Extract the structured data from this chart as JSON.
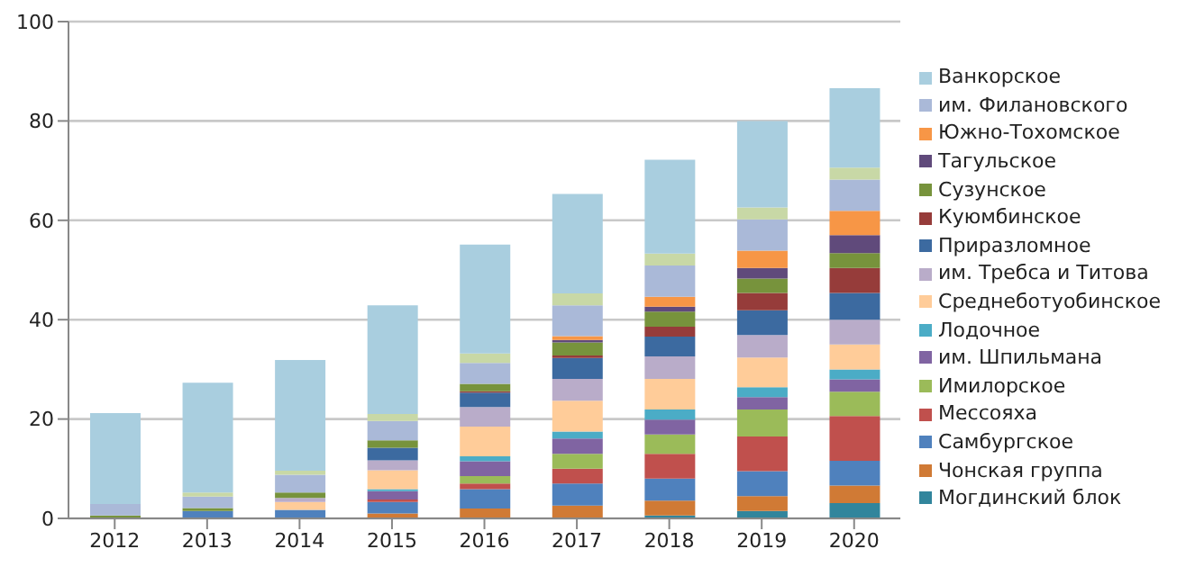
{
  "chart_data": {
    "type": "bar",
    "stacked": true,
    "categories": [
      "2012",
      "2013",
      "2014",
      "2015",
      "2016",
      "2017",
      "2018",
      "2019",
      "2020"
    ],
    "ylim": [
      0,
      100
    ],
    "yticks": [
      0,
      20,
      40,
      60,
      80,
      100
    ],
    "grid": "y",
    "legend": "right",
    "series": [
      {
        "name": "Могдинский блок",
        "color": "#31859c",
        "values": [
          0,
          0,
          0,
          0,
          0,
          0,
          0.6,
          1.5,
          3.1
        ]
      },
      {
        "name": "Чонская группа",
        "color": "#d07a35",
        "values": [
          0,
          0,
          0,
          1.0,
          2.0,
          2.6,
          3.0,
          3.0,
          3.5
        ]
      },
      {
        "name": "Самбургское",
        "color": "#4f81bd",
        "values": [
          0,
          1.5,
          1.7,
          2.3,
          3.9,
          4.4,
          4.4,
          5.0,
          5.0
        ]
      },
      {
        "name": "Мессояха",
        "color": "#c0504d",
        "values": [
          0,
          0,
          0,
          0.5,
          1.1,
          3.0,
          5.0,
          7.0,
          9.0
        ]
      },
      {
        "name": "Имилорское",
        "color": "#9bbb59",
        "values": [
          0,
          0,
          0,
          0,
          1.5,
          3.0,
          3.9,
          5.4,
          4.9
        ]
      },
      {
        "name": "им. Шпильмана",
        "color": "#8064a2",
        "values": [
          0,
          0,
          0,
          1.7,
          3.0,
          3.1,
          3.0,
          2.5,
          2.5
        ]
      },
      {
        "name": "Лодочное",
        "color": "#4bacc6",
        "values": [
          0,
          0,
          0,
          0.4,
          1.0,
          1.4,
          2.0,
          2.0,
          2.0
        ]
      },
      {
        "name": "Среднеботуобинское",
        "color": "#ffcc99",
        "values": [
          0,
          0,
          1.6,
          3.8,
          6.0,
          6.2,
          6.2,
          6.0,
          5.0
        ]
      },
      {
        "name": "им. Требса и Титова",
        "color": "#b9acc9",
        "values": [
          0,
          0,
          0.8,
          2.0,
          3.9,
          4.4,
          4.5,
          4.5,
          5.0
        ]
      },
      {
        "name": "Приразломное",
        "color": "#3c6aa0",
        "values": [
          0,
          0,
          0,
          2.5,
          2.9,
          4.2,
          4.0,
          5.0,
          5.4
        ]
      },
      {
        "name": "Куюмбинское",
        "color": "#963c3a",
        "values": [
          0,
          0,
          0,
          0,
          0.3,
          0.5,
          2.0,
          3.5,
          5.0
        ]
      },
      {
        "name": "Сузунское",
        "color": "#77933c",
        "values": [
          0.6,
          0.6,
          1.1,
          1.5,
          1.5,
          2.6,
          3.0,
          2.9,
          3.0
        ]
      },
      {
        "name": "Тагульское",
        "color": "#604a7b",
        "values": [
          0,
          0,
          0,
          0,
          0,
          0.5,
          1.0,
          2.1,
          3.6
        ]
      },
      {
        "name": "Южно-Тохомское",
        "color": "#f79646",
        "values": [
          0,
          0,
          0,
          0,
          0,
          0.8,
          2.0,
          3.5,
          4.9
        ]
      },
      {
        "name": "им. Филановского",
        "color": "#aab9d8",
        "values": [
          2.3,
          2.3,
          3.6,
          3.9,
          4.2,
          6.2,
          6.3,
          6.3,
          6.3
        ]
      },
      {
        "color": "#c8d8a6",
        "values": [
          null,
          0.8,
          0.8,
          1.4,
          1.9,
          2.4,
          2.4,
          2.4,
          2.4
        ]
      },
      {
        "name": "Ванкорское",
        "color": "#a9cedf",
        "values": [
          18.3,
          22.1,
          22.3,
          21.9,
          21.9,
          20.0,
          18.9,
          17.4,
          16.0
        ]
      }
    ]
  }
}
